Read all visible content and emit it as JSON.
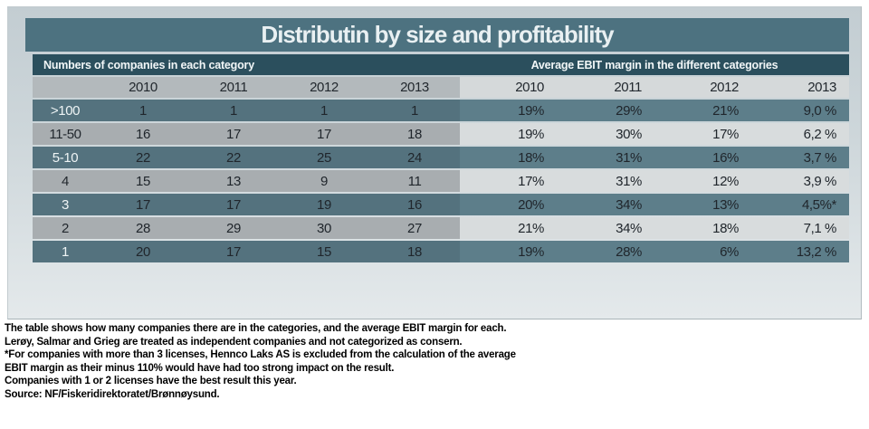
{
  "chart_data": {
    "type": "table",
    "title": "Distributin by size and profitability",
    "left_section": {
      "header": "Numbers of companies in each category"
    },
    "right_section": {
      "header": "Average EBIT margin in the different categories"
    },
    "years": [
      "2010",
      "2011",
      "2012",
      "2013"
    ],
    "row_label_meaning": "license size category",
    "rows": [
      {
        "category": ">100",
        "counts": [
          "1",
          "1",
          "1",
          "1"
        ],
        "margins": [
          "19%",
          "29%",
          "21%",
          "9,0 %"
        ]
      },
      {
        "category": "11-50",
        "counts": [
          "16",
          "17",
          "17",
          "18"
        ],
        "margins": [
          "19%",
          "30%",
          "17%",
          "6,2 %"
        ]
      },
      {
        "category": "5-10",
        "counts": [
          "22",
          "22",
          "25",
          "24"
        ],
        "margins": [
          "18%",
          "31%",
          "16%",
          "3,7 %"
        ]
      },
      {
        "category": "4",
        "counts": [
          "15",
          "13",
          "9",
          "11"
        ],
        "margins": [
          "17%",
          "31%",
          "12%",
          "3,9 %"
        ]
      },
      {
        "category": "3",
        "counts": [
          "17",
          "17",
          "19",
          "16"
        ],
        "margins": [
          "20%",
          "34%",
          "13%",
          "4,5%*"
        ]
      },
      {
        "category": "2",
        "counts": [
          "28",
          "29",
          "30",
          "27"
        ],
        "margins": [
          "21%",
          "34%",
          "18%",
          "7,1 %"
        ]
      },
      {
        "category": "1",
        "counts": [
          "20",
          "17",
          "15",
          "18"
        ],
        "margins": [
          "19%",
          "28%",
          "6%",
          "13,2 %"
        ]
      }
    ]
  },
  "footnotes": [
    "The table shows how many companies there are in the categories, and the average EBIT margin for each.",
    "Lerøy, Salmar and Grieg are treated as independent companies and not categorized as consern.",
    "*For companies with more than 3 licenses, Hennco Laks AS is excluded from the calculation of the average",
    "EBIT margin as their minus 110% would have had too strong impact on the result.",
    "Companies with 1 or 2 licenses have the best result this year.",
    "Source: NF/Fiskeridirektoratet/Brønnøysund."
  ],
  "colors": {
    "title_bar": "#4d7280",
    "group_header_bar": "#2b4f5d",
    "teal_row_left": "#54727e",
    "teal_row_right": "#5d7e8a",
    "gray_row_left": "#a8adb0",
    "gray_row_right": "#d8dcdd",
    "year_row_left": "#b3b9bc",
    "year_row_right": "#d5d9da",
    "panel_top": "#c3cdd2",
    "panel_bottom": "#e4e9eb"
  }
}
